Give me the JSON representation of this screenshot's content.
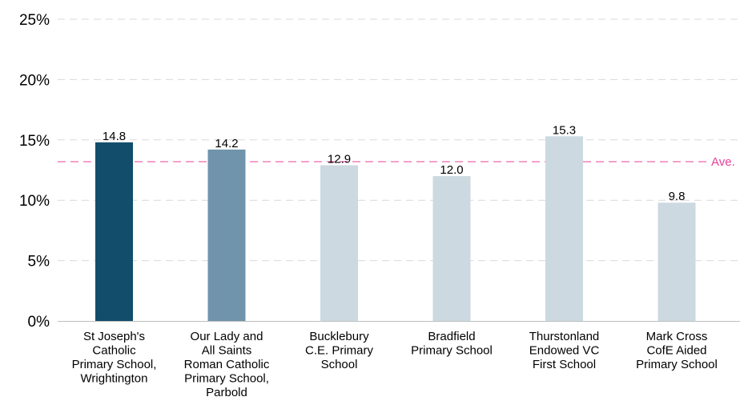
{
  "chart_data": {
    "type": "bar",
    "categories": [
      [
        "St Joseph's",
        "Catholic",
        "Primary School,",
        "Wrightington"
      ],
      [
        "Our Lady and",
        "All Saints",
        "Roman Catholic",
        "Primary School,",
        "Parbold"
      ],
      [
        "Bucklebury",
        "C.E. Primary",
        "School"
      ],
      [
        "Bradfield",
        "Primary School"
      ],
      [
        "Thurstonland",
        "Endowed VC",
        "First School"
      ],
      [
        "Mark Cross",
        "CofE Aided",
        "Primary School"
      ]
    ],
    "values": [
      14.8,
      14.2,
      12.9,
      12.0,
      15.3,
      9.8
    ],
    "value_labels": [
      "14.8",
      "14.2",
      "12.9",
      "12.0",
      "15.3",
      "9.8"
    ],
    "bar_colors": [
      "#124e6b",
      "#7094ab",
      "#ccd9e1",
      "#ccd9e1",
      "#ccd9e1",
      "#ccd9e1"
    ],
    "ylim": [
      0,
      25
    ],
    "yticks": [
      0,
      5,
      10,
      15,
      20,
      25
    ],
    "ytick_labels": [
      "0%",
      "5%",
      "10%",
      "15%",
      "20%",
      "25%"
    ],
    "grid": true,
    "grid_color": "#d9d9d9",
    "reference_line": {
      "value": 13.2,
      "label": "Ave.",
      "color": "#e8409a"
    }
  }
}
